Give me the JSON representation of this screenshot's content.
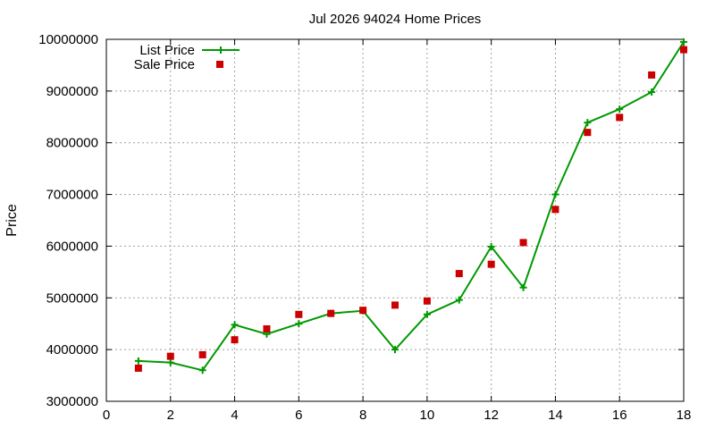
{
  "chart_data": {
    "type": "line",
    "title": "Jul 2026 94024 Home Prices",
    "xlabel": "",
    "ylabel": "Price",
    "xlim": [
      0,
      18
    ],
    "ylim": [
      3000000,
      10000000
    ],
    "x_ticks": [
      "0",
      "2",
      "4",
      "6",
      "8",
      "10",
      "12",
      "14",
      "16",
      "18"
    ],
    "y_ticks": [
      "3000000",
      "4000000",
      "5000000",
      "6000000",
      "7000000",
      "8000000",
      "9000000",
      "10000000"
    ],
    "grid": true,
    "legend_position": "top-left",
    "series": [
      {
        "name": "List Price",
        "style": "line+cross",
        "color": "#009900",
        "x": [
          1,
          2,
          3,
          4,
          5,
          6,
          7,
          8,
          9,
          10,
          11,
          12,
          13,
          14,
          15,
          16,
          17,
          18
        ],
        "values": [
          3780000,
          3750000,
          3600000,
          4480000,
          4300000,
          4500000,
          4700000,
          4750000,
          4000000,
          4680000,
          4960000,
          5990000,
          5200000,
          7000000,
          8390000,
          8650000,
          8980000,
          9950000
        ]
      },
      {
        "name": "Sale Price",
        "style": "square",
        "color": "#cc0000",
        "x": [
          1,
          2,
          3,
          4,
          5,
          6,
          7,
          8,
          9,
          10,
          11,
          12,
          13,
          14,
          15,
          16,
          17,
          18
        ],
        "values": [
          3640000,
          3870000,
          3900000,
          4190000,
          4400000,
          4680000,
          4700000,
          4760000,
          4860000,
          4940000,
          5470000,
          5650000,
          6070000,
          6710000,
          8200000,
          8490000,
          9310000,
          9800000
        ]
      }
    ]
  }
}
